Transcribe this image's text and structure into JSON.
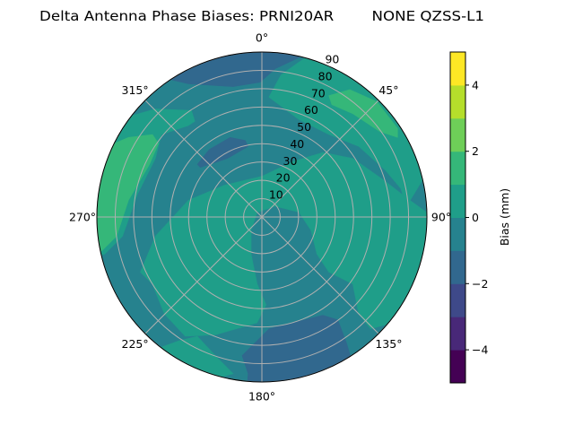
{
  "chart_data": {
    "type": "polar-contour",
    "title": "Delta Antenna Phase Biases: PRNI20AR        NONE QZSS-L1",
    "angular_axis": {
      "direction": "clockwise",
      "zero": "north",
      "tick_labels": [
        {
          "angle": 0,
          "label": "0°"
        },
        {
          "angle": 45,
          "label": "45°"
        },
        {
          "angle": 90,
          "label": "90°"
        },
        {
          "angle": 135,
          "label": "135°"
        },
        {
          "angle": 180,
          "label": "180°"
        },
        {
          "angle": 225,
          "label": "225°"
        },
        {
          "angle": 270,
          "label": "270°"
        },
        {
          "angle": 315,
          "label": "315°"
        }
      ]
    },
    "radial_axis": {
      "range": [
        0,
        90
      ],
      "label_angle": 22.5,
      "ticks": [
        10,
        20,
        30,
        40,
        50,
        60,
        70,
        80,
        90
      ],
      "tick_labels": [
        "10",
        "20",
        "30",
        "40",
        "50",
        "60",
        "70",
        "80",
        "90"
      ]
    },
    "grid": true,
    "grid_color": "#b0b0b0",
    "colorbar": {
      "label": "Bias (mm)",
      "location": "right",
      "levels": [
        -5,
        -4,
        -3,
        -2,
        -1,
        0,
        1,
        2,
        3,
        4,
        5
      ],
      "colors": [
        "#440154",
        "#482878",
        "#3e4989",
        "#31688e",
        "#26828e",
        "#1f9e89",
        "#35b779",
        "#6ece58",
        "#b5de2b",
        "#fde725"
      ],
      "ticks": [
        -4,
        -2,
        0,
        2,
        4
      ],
      "tick_labels": [
        "−4",
        "−2",
        "0",
        "2",
        "4"
      ]
    },
    "background_level": [
      -1,
      0
    ],
    "regions": [
      {
        "level": [
          0,
          1
        ],
        "points": [
          [
            245.6,
            72.7
          ],
          [
            259.8,
            59
          ],
          [
            282.8,
            41.1
          ],
          [
            310.1,
            26.9
          ],
          [
            0,
            22.2
          ],
          [
            29.2,
            34.7
          ],
          [
            43.4,
            48.4
          ],
          [
            57.2,
            59
          ],
          [
            72.7,
            69
          ],
          [
            83.5,
            81.1
          ],
          [
            89.4,
            92
          ],
          [
            92.5,
            92
          ],
          [
            109.1,
            92
          ],
          [
            128.7,
            92
          ],
          [
            135.8,
            85.1
          ],
          [
            135,
            74.7
          ],
          [
            126.4,
            61.6
          ],
          [
            129.4,
            47.3
          ],
          [
            124,
            36.2
          ],
          [
            105,
            27.7
          ],
          [
            82.6,
            20.4
          ],
          [
            50.7,
            9.3
          ],
          [
            315,
            3.7
          ],
          [
            219.3,
            9.3
          ],
          [
            196.2,
            21.1
          ],
          [
            184.1,
            36.6
          ],
          [
            177.3,
            48
          ],
          [
            182.6,
            57.8
          ],
          [
            201.6,
            69.1
          ],
          [
            212.7,
            77.3
          ],
          [
            225.2,
            74.9
          ],
          [
            238.5,
            70
          ]
        ]
      },
      {
        "level": [
          0,
          1
        ],
        "points": [
          [
            3.4,
            65.5
          ],
          [
            7.7,
            78.3
          ],
          [
            16.2,
            92
          ],
          [
            40,
            92
          ],
          [
            60,
            92
          ],
          [
            75.7,
            92
          ],
          [
            85.7,
            79.1
          ],
          [
            78.3,
            77.3
          ],
          [
            69.4,
            72.1
          ],
          [
            53.9,
            65.4
          ],
          [
            39.1,
            58
          ],
          [
            20.8,
            56.9
          ]
        ]
      },
      {
        "level": [
          0,
          1
        ],
        "points": [
          [
            256.7,
            92
          ],
          [
            271.7,
            92
          ],
          [
            294.7,
            92
          ],
          [
            306.2,
            92
          ],
          [
            315.4,
            82.7
          ],
          [
            326.5,
            69.7
          ],
          [
            325,
            63.8
          ],
          [
            321.2,
            64
          ],
          [
            309.4,
            70.9
          ],
          [
            298.8,
            66.3
          ],
          [
            280.4,
            69
          ],
          [
            262.2,
            76.7
          ],
          [
            256.7,
            88.1
          ]
        ]
      },
      {
        "level": [
          0,
          1
        ],
        "points": [
          [
            218.6,
            92
          ],
          [
            213.7,
            81.1
          ],
          [
            208.4,
            74
          ],
          [
            198.6,
            79.8
          ],
          [
            190.4,
            86.9
          ],
          [
            196.3,
            92
          ]
        ]
      },
      {
        "level": [
          1,
          2
        ],
        "points": [
          [
            28.9,
            75.6
          ],
          [
            34.6,
            84.4
          ],
          [
            44.9,
            88.8
          ],
          [
            56.9,
            88.4
          ],
          [
            59.6,
            85.8
          ],
          [
            54,
            79.4
          ],
          [
            41.3,
            75.1
          ],
          [
            31.9,
            72.2
          ]
        ]
      },
      {
        "level": [
          1,
          2
        ],
        "points": [
          [
            258,
            92
          ],
          [
            267.5,
            92
          ],
          [
            285.9,
            92
          ],
          [
            295,
            92
          ],
          [
            300.8,
            84.7
          ],
          [
            307,
            74.7
          ],
          [
            305.4,
            69.2
          ],
          [
            295.1,
            67.7
          ],
          [
            277.2,
            73.3
          ],
          [
            262.5,
            79.9
          ],
          [
            258,
            89.4
          ]
        ]
      },
      {
        "level": [
          -2,
          -1
        ],
        "points": [
          [
            -34.7,
            92
          ],
          [
            -28.9,
            83
          ],
          [
            -12.4,
            72.8
          ],
          [
            -0.8,
            73.5
          ],
          [
            5.1,
            81.2
          ],
          [
            15.2,
            92
          ],
          [
            0,
            92
          ],
          [
            -20,
            92
          ]
        ]
      },
      {
        "level": [
          -2,
          -1
        ],
        "points": [
          [
            309.2,
            45.4
          ],
          [
            322.1,
            46.7
          ],
          [
            338.3,
            46.7
          ],
          [
            347.7,
            42.7
          ],
          [
            349,
            39.2
          ],
          [
            329.4,
            37.1
          ],
          [
            308.9,
            43.1
          ]
        ]
      },
      {
        "level": [
          -2,
          -1
        ],
        "points": [
          [
            188.1,
            76.4
          ],
          [
            176.3,
            61.1
          ],
          [
            148.2,
            63.1
          ],
          [
            143.6,
            69.7
          ],
          [
            146.2,
            83.2
          ],
          [
            147.9,
            92
          ],
          [
            170,
            92
          ],
          [
            185,
            92
          ],
          [
            185,
            85.8
          ]
        ]
      }
    ]
  }
}
